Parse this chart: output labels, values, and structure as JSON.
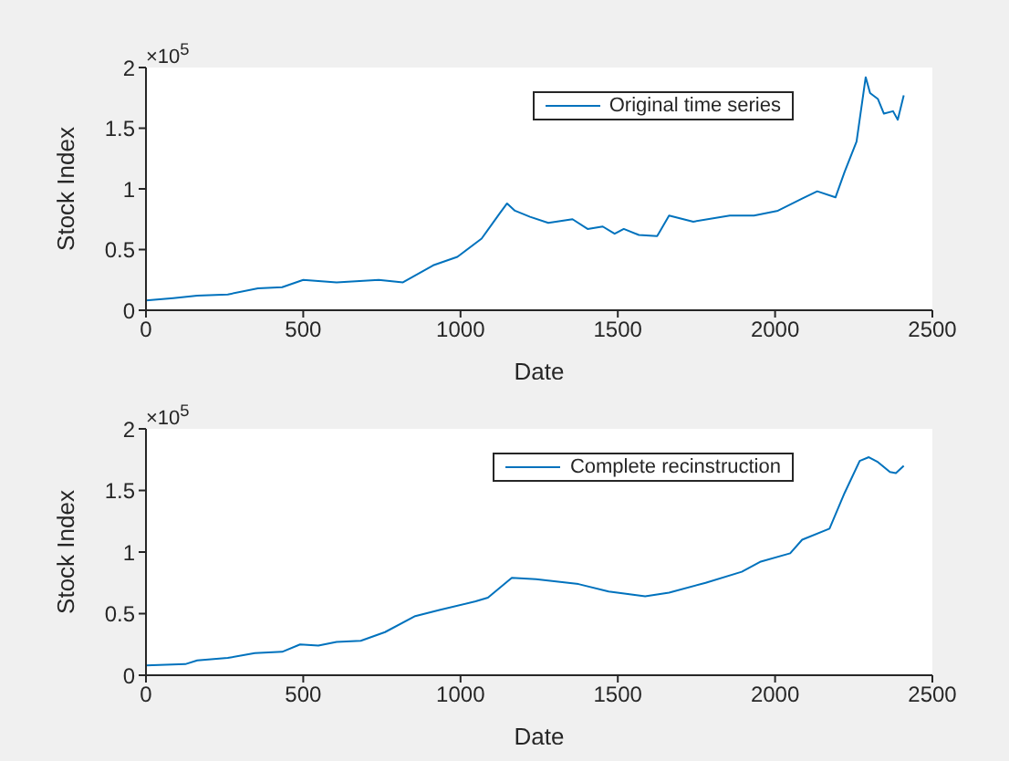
{
  "chart_data": [
    {
      "type": "line",
      "xlabel": "Date",
      "ylabel": "Stock Index",
      "annotations": [
        "×10$^{5}$"
      ],
      "legend": "top right",
      "grid": false,
      "x": [
        0,
        87,
        163,
        260,
        356,
        433,
        500,
        606,
        740,
        817,
        913,
        990,
        1067,
        1125,
        1148,
        1173,
        1221,
        1279,
        1356,
        1404,
        1452,
        1490,
        1519,
        1567,
        1625,
        1663,
        1740,
        1856,
        1933,
        2009,
        2086,
        2134,
        2192,
        2221,
        2259,
        2288,
        2302,
        2327,
        2346,
        2375,
        2390,
        2409
      ],
      "series": [
        {
          "name": "Original time series",
          "color": "#0072bd",
          "values": [
            0.08,
            0.1,
            0.12,
            0.13,
            0.18,
            0.19,
            0.25,
            0.23,
            0.25,
            0.23,
            0.37,
            0.44,
            0.59,
            0.8,
            0.88,
            0.82,
            0.77,
            0.72,
            0.75,
            0.67,
            0.69,
            0.63,
            0.67,
            0.62,
            0.61,
            0.78,
            0.73,
            0.78,
            0.78,
            0.82,
            0.92,
            0.98,
            0.93,
            1.14,
            1.39,
            1.92,
            1.79,
            1.74,
            1.62,
            1.64,
            1.57,
            1.77
          ]
        }
      ],
      "xlim": [
        0,
        2500
      ],
      "xticks": [
        0,
        500,
        1000,
        1500,
        2000,
        2500
      ],
      "ylim": [
        0,
        2
      ],
      "yticks": [
        0,
        0.5,
        1,
        1.5,
        2
      ]
    },
    {
      "type": "line",
      "xlabel": "Date",
      "ylabel": "Stock Index",
      "annotations": [
        "×10$^{5}$"
      ],
      "legend": "top right",
      "grid": false,
      "x": [
        0,
        125,
        163,
        260,
        346,
        433,
        490,
        548,
        606,
        683,
        760,
        856,
        933,
        1048,
        1087,
        1163,
        1240,
        1375,
        1471,
        1587,
        1663,
        1779,
        1894,
        1952,
        2048,
        2086,
        2173,
        2221,
        2269,
        2298,
        2327,
        2365,
        2384,
        2409
      ],
      "series": [
        {
          "name": "Complete recinstruction",
          "color": "#0072bd",
          "values": [
            0.08,
            0.09,
            0.12,
            0.14,
            0.18,
            0.19,
            0.25,
            0.24,
            0.27,
            0.28,
            0.35,
            0.48,
            0.53,
            0.6,
            0.63,
            0.79,
            0.78,
            0.74,
            0.68,
            0.64,
            0.67,
            0.75,
            0.84,
            0.92,
            0.99,
            1.1,
            1.19,
            1.48,
            1.74,
            1.77,
            1.73,
            1.65,
            1.64,
            1.7
          ]
        }
      ],
      "xlim": [
        0,
        2500
      ],
      "xticks": [
        0,
        500,
        1000,
        1500,
        2000,
        2500
      ],
      "ylim": [
        0,
        2
      ],
      "yticks": [
        0,
        0.5,
        1,
        1.5,
        2
      ]
    }
  ]
}
